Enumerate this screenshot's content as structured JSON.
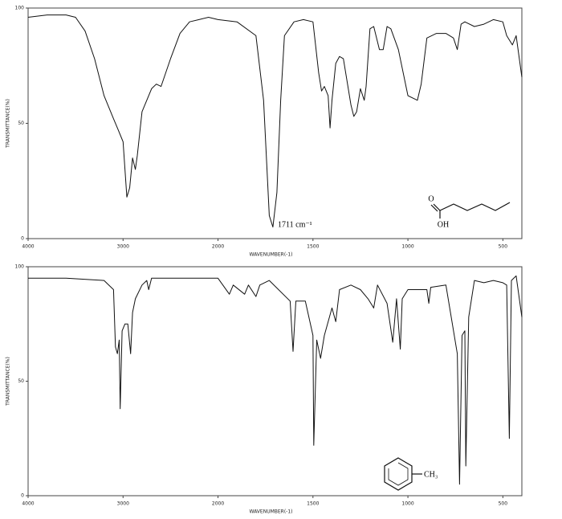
{
  "chart_data": [
    {
      "type": "line",
      "xlabel": "WAVENUMBER(-1)",
      "ylabel": "TRANSMITTANCE(%)",
      "color": "#111111",
      "xlim": [
        4000,
        400
      ],
      "xticks": [
        4000,
        3000,
        2000,
        1500,
        1000,
        500
      ],
      "ylim": [
        0,
        100
      ],
      "yticks": [
        0,
        50,
        100
      ],
      "x": [
        4000,
        3800,
        3600,
        3500,
        3400,
        3300,
        3200,
        3100,
        3050,
        3000,
        2960,
        2930,
        2900,
        2870,
        2850,
        2800,
        2700,
        2650,
        2600,
        2500,
        2400,
        2300,
        2200,
        2100,
        2000,
        1900,
        1800,
        1760,
        1730,
        1711,
        1690,
        1670,
        1650,
        1600,
        1550,
        1500,
        1470,
        1455,
        1440,
        1420,
        1410,
        1400,
        1380,
        1360,
        1340,
        1300,
        1285,
        1270,
        1250,
        1230,
        1220,
        1200,
        1180,
        1150,
        1130,
        1110,
        1090,
        1050,
        1000,
        950,
        930,
        900,
        850,
        800,
        760,
        740,
        720,
        700,
        650,
        600,
        550,
        500,
        480,
        450,
        430,
        400
      ],
      "values": [
        96,
        97,
        97,
        96,
        90,
        78,
        62,
        52,
        47,
        42,
        18,
        22,
        35,
        30,
        36,
        55,
        65,
        67,
        66,
        78,
        89,
        94,
        95,
        96,
        95,
        94,
        88,
        60,
        10,
        5,
        20,
        60,
        88,
        94,
        95,
        94,
        72,
        64,
        66,
        62,
        48,
        60,
        76,
        79,
        78,
        58,
        53,
        55,
        65,
        60,
        66,
        91,
        92,
        82,
        82,
        92,
        91,
        82,
        62,
        60,
        67,
        87,
        89,
        89,
        87,
        82,
        93,
        94,
        92,
        93,
        95,
        94,
        88,
        84,
        88,
        70
      ],
      "annotations": [
        "1711 cm⁻¹",
        "O",
        "OH"
      ]
    },
    {
      "type": "line",
      "xlabel": "WAVENUMBER(-1)",
      "ylabel": "TRANSMITTANCE(%)",
      "color": "#111111",
      "xlim": [
        4000,
        400
      ],
      "xticks": [
        4000,
        3000,
        2000,
        1500,
        1000,
        500
      ],
      "ylim": [
        0,
        100
      ],
      "yticks": [
        0,
        50,
        100
      ],
      "x": [
        4000,
        3600,
        3200,
        3100,
        3080,
        3060,
        3040,
        3030,
        3010,
        2980,
        2950,
        2920,
        2900,
        2870,
        2800,
        2750,
        2730,
        2700,
        2400,
        2000,
        1940,
        1920,
        1860,
        1840,
        1800,
        1780,
        1730,
        1620,
        1605,
        1590,
        1540,
        1500,
        1496,
        1480,
        1460,
        1440,
        1400,
        1380,
        1360,
        1300,
        1250,
        1210,
        1180,
        1160,
        1110,
        1080,
        1060,
        1040,
        1030,
        1000,
        900,
        890,
        880,
        800,
        740,
        728,
        715,
        700,
        695,
        680,
        650,
        600,
        550,
        500,
        480,
        466,
        455,
        430,
        400
      ],
      "values": [
        95,
        95,
        94,
        90,
        65,
        62,
        68,
        38,
        72,
        75,
        75,
        62,
        80,
        86,
        92,
        94,
        90,
        95,
        95,
        95,
        88,
        92,
        88,
        92,
        87,
        92,
        94,
        85,
        63,
        85,
        85,
        70,
        22,
        68,
        60,
        70,
        82,
        76,
        90,
        92,
        90,
        86,
        82,
        92,
        84,
        67,
        86,
        64,
        86,
        90,
        90,
        84,
        91,
        92,
        62,
        5,
        70,
        72,
        13,
        78,
        94,
        93,
        94,
        93,
        92,
        25,
        94,
        96,
        78
      ],
      "annotations": [
        "CH₃"
      ]
    }
  ]
}
